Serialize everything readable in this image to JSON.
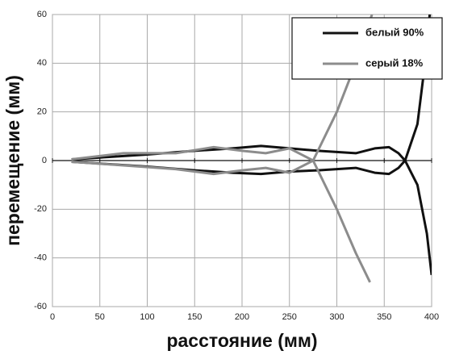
{
  "chart_data": {
    "type": "line",
    "x_label": "расстояние (мм)",
    "y_label": "перемещение (мм)",
    "xlim": [
      0,
      400
    ],
    "xticks": [
      0,
      50,
      100,
      150,
      200,
      250,
      300,
      350,
      400
    ],
    "ylim": [
      -60,
      60
    ],
    "yticks": [
      -60,
      -40,
      -20,
      0,
      20,
      40,
      60
    ],
    "grid": true,
    "legend": "upper right",
    "series": [
      {
        "name": "белый 90%",
        "color": "#111111",
        "curves": [
          {
            "x": [
              20,
              60,
              100,
              150,
              190,
              220,
              250,
              280,
              320,
              340,
              355,
              365,
              372,
              385,
              395,
              400
            ],
            "values": [
              0.5,
              1.5,
              2.5,
              4,
              5,
              6,
              5,
              4,
              3,
              5,
              5.5,
              3,
              0,
              -10,
              -30,
              -47
            ]
          },
          {
            "x": [
              20,
              60,
              100,
              150,
              190,
              220,
              250,
              280,
              320,
              340,
              355,
              365,
              372,
              385,
              393,
              398
            ],
            "values": [
              -0.5,
              -1.5,
              -2.5,
              -4,
              -5,
              -5.5,
              -4.5,
              -4,
              -3,
              -5,
              -5.5,
              -3,
              0,
              15,
              40,
              60
            ]
          }
        ]
      },
      {
        "name": "серый 18%",
        "color": "#8c8c8c",
        "curves": [
          {
            "x": [
              20,
              75,
              130,
              170,
              200,
              225,
              250,
              275,
              300,
              320,
              335
            ],
            "values": [
              0.5,
              3,
              3,
              5.5,
              4,
              3,
              5,
              0,
              -20,
              -38,
              -50
            ]
          },
          {
            "x": [
              20,
              75,
              130,
              170,
              200,
              225,
              250,
              275,
              300,
              325,
              337
            ],
            "values": [
              -0.5,
              -2,
              -3.5,
              -5.5,
              -4,
              -3,
              -5,
              0,
              20,
              45,
              60
            ]
          }
        ]
      }
    ]
  }
}
